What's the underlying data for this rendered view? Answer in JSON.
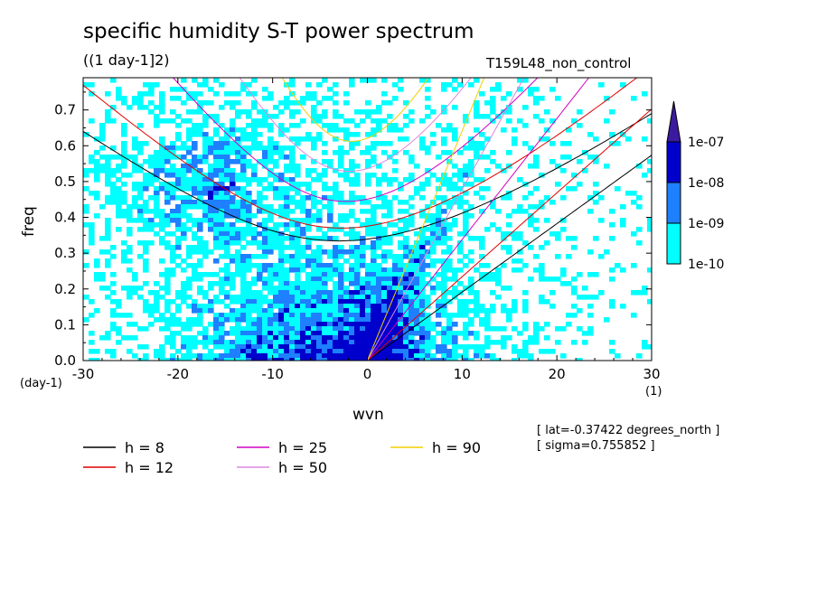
{
  "title": "specific humidity S-T power spectrum",
  "subtitle": "((1 day-1]2)",
  "run_label": "T159L48_non_control",
  "info": {
    "lat": "[ lat=-0.37422 degrees_north ]",
    "sigma": "[ sigma=0.755852 ]"
  },
  "chart_data": {
    "type": "heatmap",
    "title": "specific humidity S-T power spectrum",
    "subtitle": "((1 day-1]2)",
    "xlabel": "wvn",
    "ylabel": "freq",
    "x_unit": "(1)",
    "y_unit": "(day-1)",
    "xlim": [
      -30,
      30
    ],
    "ylim": [
      0,
      0.79
    ],
    "x_ticks": [
      "-30",
      "-20",
      "-10",
      "0",
      "10",
      "20",
      "30"
    ],
    "y_ticks": [
      "0.0",
      "0.1",
      "0.2",
      "0.3",
      "0.4",
      "0.5",
      "0.6",
      "0.7"
    ],
    "colorbar": {
      "levels": [
        "1e-10",
        "1e-09",
        "1e-08",
        "1e-07"
      ],
      "colors": [
        "#00ffff",
        "#1e7fff",
        "#0000cc",
        "#3c1aa0"
      ]
    },
    "dispersion_curves": [
      {
        "label": "h =  8",
        "h": 8,
        "color": "#000000"
      },
      {
        "label": "h = 12",
        "h": 12,
        "color": "#e00000"
      },
      {
        "label": "h = 25",
        "h": 25,
        "color": "#d000c0"
      },
      {
        "label": "h = 50",
        "h": 50,
        "color": "#dd88dd"
      },
      {
        "label": "h = 90",
        "h": 90,
        "color": "#f0d000"
      }
    ],
    "grid": false
  }
}
